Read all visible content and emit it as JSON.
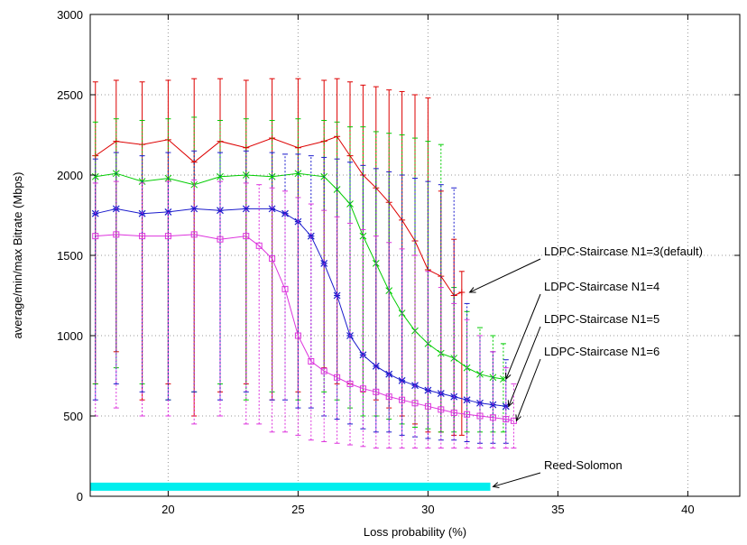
{
  "chart_data": {
    "type": "line",
    "title": "",
    "xlabel": "Loss probability (%)",
    "ylabel": "average/min/max Bitrate (Mbps)",
    "xlim": [
      17,
      42
    ],
    "ylim": [
      0,
      3000
    ],
    "xticks": [
      20,
      25,
      30,
      35,
      40
    ],
    "yticks": [
      0,
      500,
      1000,
      1500,
      2000,
      2500,
      3000
    ],
    "grid": true,
    "legend": "annotations with arrows on the right side",
    "series": [
      {
        "name": "LDPC-Staircase N1=3(default)",
        "color": "#dd0000",
        "marker": "plus",
        "x": [
          17.2,
          18,
          19,
          20,
          21,
          22,
          23,
          24,
          25,
          26,
          26.5,
          27,
          27.5,
          28,
          28.5,
          29,
          29.5,
          30,
          30.5,
          31,
          31.3
        ],
        "avg": [
          2120,
          2210,
          2190,
          2220,
          2080,
          2210,
          2170,
          2230,
          2170,
          2210,
          2240,
          2120,
          2000,
          1920,
          1830,
          1720,
          1590,
          1410,
          1370,
          1250,
          1270
        ],
        "min": [
          700,
          900,
          600,
          700,
          500,
          650,
          700,
          600,
          650,
          800,
          700,
          700,
          650,
          600,
          550,
          500,
          450,
          400,
          400,
          380,
          380
        ],
        "max": [
          2580,
          2590,
          2580,
          2590,
          2600,
          2600,
          2590,
          2600,
          2600,
          2590,
          2600,
          2580,
          2560,
          2550,
          2530,
          2520,
          2500,
          2480,
          1900,
          1600,
          1400
        ]
      },
      {
        "name": "LDPC-Staircase N1=4",
        "color": "#00cc00",
        "marker": "cross",
        "x": [
          17.2,
          18,
          19,
          20,
          21,
          22,
          23,
          24,
          25,
          26,
          26.5,
          27,
          27.5,
          28,
          28.5,
          29,
          29.5,
          30,
          30.5,
          31,
          31.5,
          32,
          32.5,
          32.9
        ],
        "avg": [
          1990,
          2010,
          1960,
          1980,
          1940,
          1990,
          2000,
          1990,
          2010,
          1990,
          1910,
          1820,
          1620,
          1450,
          1280,
          1140,
          1030,
          950,
          890,
          860,
          800,
          760,
          740,
          730
        ],
        "min": [
          700,
          800,
          700,
          600,
          650,
          700,
          600,
          650,
          600,
          650,
          600,
          550,
          500,
          500,
          480,
          450,
          430,
          420,
          400,
          400,
          400,
          400,
          400,
          400
        ],
        "max": [
          2330,
          2350,
          2340,
          2350,
          2360,
          2340,
          2350,
          2340,
          2350,
          2340,
          2330,
          2300,
          2300,
          2270,
          2260,
          2250,
          2230,
          2210,
          2190,
          1300,
          1150,
          1050,
          1000,
          950
        ]
      },
      {
        "name": "LDPC-Staircase N1=5",
        "color": "#1a1acc",
        "marker": "star",
        "x": [
          17.2,
          18,
          19,
          20,
          21,
          22,
          23,
          24,
          24.5,
          25,
          25.5,
          26,
          26.5,
          27,
          27.5,
          28,
          28.5,
          29,
          29.5,
          30,
          30.5,
          31,
          31.5,
          32,
          32.5,
          33
        ],
        "avg": [
          1760,
          1790,
          1760,
          1770,
          1790,
          1780,
          1790,
          1790,
          1760,
          1710,
          1620,
          1450,
          1250,
          1000,
          880,
          810,
          760,
          720,
          690,
          660,
          640,
          620,
          600,
          580,
          570,
          560
        ],
        "min": [
          600,
          700,
          650,
          600,
          650,
          600,
          650,
          600,
          600,
          550,
          550,
          500,
          480,
          450,
          420,
          400,
          400,
          380,
          370,
          360,
          350,
          350,
          340,
          330,
          330,
          330
        ],
        "max": [
          2100,
          2140,
          2120,
          2140,
          2150,
          2140,
          2150,
          2140,
          2130,
          2130,
          2120,
          2110,
          2100,
          2080,
          2060,
          2040,
          2020,
          2000,
          1980,
          1960,
          1940,
          1920,
          1200,
          1000,
          900,
          850
        ]
      },
      {
        "name": "LDPC-Staircase N1=6",
        "color": "#dd33dd",
        "marker": "box",
        "x": [
          17.2,
          18,
          19,
          20,
          21,
          22,
          23,
          23.5,
          24,
          24.5,
          25,
          25.5,
          26,
          26.5,
          27,
          27.5,
          28,
          28.5,
          29,
          29.5,
          30,
          30.5,
          31,
          31.5,
          32,
          32.5,
          33,
          33.3
        ],
        "avg": [
          1620,
          1630,
          1620,
          1620,
          1630,
          1600,
          1620,
          1560,
          1480,
          1290,
          1000,
          840,
          780,
          740,
          700,
          670,
          650,
          620,
          600,
          580,
          560,
          540,
          520,
          510,
          500,
          490,
          480,
          470
        ],
        "min": [
          500,
          550,
          500,
          500,
          450,
          500,
          450,
          450,
          400,
          400,
          380,
          350,
          340,
          330,
          320,
          310,
          300,
          300,
          300,
          300,
          300,
          300,
          300,
          300,
          300,
          300,
          300,
          300
        ],
        "max": [
          1950,
          1960,
          1950,
          1960,
          1970,
          1960,
          1950,
          1940,
          1920,
          1900,
          1860,
          1820,
          1780,
          1740,
          1700,
          1660,
          1620,
          1580,
          1540,
          1500,
          1400,
          1300,
          1200,
          1100,
          1000,
          900,
          800,
          700
        ]
      },
      {
        "name": "Reed-Solomon",
        "color": "#00eeee",
        "marker": "thick",
        "x": [
          17,
          32.4
        ],
        "avg": [
          60,
          60
        ],
        "min": [
          40,
          40
        ],
        "max": [
          80,
          80
        ]
      }
    ],
    "annotations": [
      {
        "text": "LDPC-Staircase N1=3(default)",
        "point": [
          31.5,
          1270
        ]
      },
      {
        "text": "LDPC-Staircase N1=4",
        "point": [
          32.9,
          730
        ]
      },
      {
        "text": "LDPC-Staircase N1=5",
        "point": [
          33.0,
          560
        ]
      },
      {
        "text": "LDPC-Staircase N1=6",
        "point": [
          33.3,
          470
        ]
      },
      {
        "text": "Reed-Solomon",
        "point": [
          32.4,
          60
        ]
      }
    ]
  }
}
